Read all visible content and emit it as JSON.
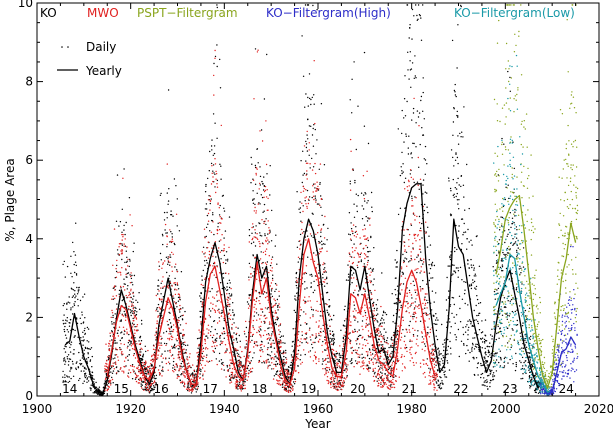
{
  "chart_data": {
    "type": "scatter",
    "xlabel": "Year",
    "ylabel": "%, Plage Area",
    "xlim": [
      1900,
      2020
    ],
    "ylim": [
      0,
      10
    ],
    "xticks": [
      "1900",
      "1920",
      "1940",
      "1960",
      "1980",
      "2000",
      "2020"
    ],
    "yticks": [
      "0",
      "2",
      "4",
      "6",
      "8",
      "10"
    ],
    "grid": false,
    "legend": {
      "placement": "top-left",
      "entries": [
        {
          "label": "Daily",
          "marker": "dot"
        },
        {
          "label": "Yearly",
          "marker": "line"
        }
      ]
    },
    "sources": [
      {
        "name": "KO",
        "color": "#000000"
      },
      {
        "name": "MWO",
        "color": "#e0201f"
      },
      {
        "name": "PSPT−Filtergram",
        "color": "#8aa51e"
      },
      {
        "name": "KO−Filtergram(High)",
        "color": "#2d2dc8"
      },
      {
        "name": "KO−Filtergram(Low)",
        "color": "#1a9aa8"
      }
    ],
    "cycle_labels": [
      {
        "label": "14",
        "x": 1907
      },
      {
        "label": "15",
        "x": 1918
      },
      {
        "label": "16",
        "x": 1926.5
      },
      {
        "label": "17",
        "x": 1937
      },
      {
        "label": "18",
        "x": 1947.5
      },
      {
        "label": "19",
        "x": 1958
      },
      {
        "label": "20",
        "x": 1968.5
      },
      {
        "label": "21",
        "x": 1979.5
      },
      {
        "label": "22",
        "x": 1990.5
      },
      {
        "label": "23",
        "x": 2001
      },
      {
        "label": "24",
        "x": 2013
      }
    ],
    "series": [
      {
        "name": "KO",
        "color": "#000000",
        "x": [
          1906,
          1907,
          1908,
          1909,
          1910,
          1911,
          1912,
          1913,
          1914,
          1915,
          1916,
          1917,
          1918,
          1919,
          1920,
          1921,
          1922,
          1923,
          1924,
          1925,
          1926,
          1927,
          1928,
          1929,
          1930,
          1931,
          1932,
          1933,
          1934,
          1935,
          1936,
          1937,
          1938,
          1939,
          1940,
          1941,
          1942,
          1943,
          1944,
          1945,
          1946,
          1947,
          1948,
          1949,
          1950,
          1951,
          1952,
          1953,
          1954,
          1955,
          1956,
          1957,
          1958,
          1959,
          1960,
          1961,
          1962,
          1963,
          1964,
          1965,
          1966,
          1967,
          1968,
          1969,
          1970,
          1971,
          1972,
          1973,
          1974,
          1975,
          1976,
          1977,
          1978,
          1979,
          1980,
          1981,
          1982,
          1983,
          1984,
          1985,
          1986,
          1987,
          1988,
          1989,
          1990,
          1991,
          1992,
          1993,
          1994,
          1995,
          1996,
          1997,
          1998,
          1999,
          2000,
          2001,
          2002,
          2003,
          2004,
          2005,
          2006,
          2007
        ],
        "y": [
          1.3,
          1.4,
          2.1,
          1.5,
          1.0,
          0.7,
          0.3,
          0.1,
          0.05,
          0.4,
          1.1,
          2.0,
          2.7,
          2.3,
          1.8,
          1.3,
          0.9,
          0.5,
          0.3,
          0.6,
          1.8,
          2.4,
          3.0,
          2.4,
          1.8,
          1.1,
          0.6,
          0.3,
          0.3,
          1.4,
          2.9,
          3.5,
          3.9,
          3.4,
          2.6,
          1.7,
          1.2,
          0.6,
          0.4,
          1.2,
          2.6,
          3.6,
          3.0,
          3.3,
          2.2,
          1.5,
          1.0,
          0.5,
          0.3,
          1.1,
          3.0,
          4.0,
          4.5,
          4.2,
          3.6,
          2.6,
          1.6,
          1.0,
          0.6,
          0.6,
          1.5,
          3.3,
          3.2,
          2.7,
          3.3,
          2.5,
          1.7,
          1.1,
          1.2,
          0.8,
          1.0,
          2.2,
          4.2,
          4.9,
          5.3,
          5.4,
          5.4,
          3.5,
          2.2,
          1.3,
          0.6,
          0.8,
          2.2,
          4.5,
          3.8,
          3.6,
          2.8,
          2.0,
          1.5,
          1.0,
          0.6,
          0.9,
          1.8,
          2.5,
          2.9,
          3.2,
          2.6,
          2.0,
          1.3,
          0.9,
          0.5,
          0.2
        ]
      },
      {
        "name": "MWO",
        "color": "#e0201f",
        "x": [
          1915,
          1916,
          1917,
          1918,
          1919,
          1920,
          1921,
          1922,
          1923,
          1924,
          1925,
          1926,
          1927,
          1928,
          1929,
          1930,
          1931,
          1932,
          1933,
          1934,
          1935,
          1936,
          1937,
          1938,
          1939,
          1940,
          1941,
          1942,
          1943,
          1944,
          1945,
          1946,
          1947,
          1948,
          1949,
          1950,
          1951,
          1952,
          1953,
          1954,
          1955,
          1956,
          1957,
          1958,
          1959,
          1960,
          1961,
          1962,
          1963,
          1964,
          1965,
          1966,
          1967,
          1968,
          1969,
          1970,
          1971,
          1972,
          1973,
          1974,
          1975,
          1976,
          1977,
          1978,
          1979,
          1980,
          1981,
          1982,
          1983,
          1984,
          1985
        ],
        "y": [
          0.5,
          1.2,
          1.9,
          2.3,
          2.2,
          1.7,
          1.2,
          0.8,
          0.5,
          0.4,
          0.7,
          1.5,
          2.0,
          2.5,
          2.2,
          1.7,
          1.0,
          0.6,
          0.3,
          0.3,
          1.1,
          2.4,
          3.1,
          3.3,
          2.7,
          2.1,
          1.4,
          0.8,
          0.5,
          0.4,
          1.1,
          2.4,
          3.4,
          2.6,
          3.0,
          2.0,
          1.4,
          0.8,
          0.4,
          0.3,
          0.7,
          2.3,
          3.6,
          4.0,
          3.4,
          3.0,
          2.1,
          1.3,
          0.7,
          0.5,
          0.5,
          1.1,
          2.6,
          2.5,
          2.1,
          2.6,
          2.0,
          1.3,
          0.9,
          0.8,
          0.6,
          0.5,
          1.2,
          2.2,
          2.9,
          3.2,
          2.9,
          2.3,
          1.6,
          0.9,
          0.5
        ]
      },
      {
        "name": "PSPT−Filtergram",
        "color": "#8aa51e",
        "x": [
          1998,
          1999,
          2000,
          2001,
          2002,
          2003,
          2004,
          2005,
          2006,
          2007,
          2008,
          2009,
          2010,
          2011,
          2012,
          2013,
          2014,
          2015
        ],
        "y": [
          3.1,
          3.7,
          4.5,
          4.8,
          5.0,
          5.1,
          4.2,
          3.1,
          2.0,
          1.2,
          0.5,
          0.2,
          0.6,
          1.8,
          3.0,
          3.5,
          4.4,
          3.9
        ]
      },
      {
        "name": "KO−Filtergram(High)",
        "color": "#2d2dc8",
        "x": [
          2008,
          2009,
          2010,
          2011,
          2012,
          2013,
          2014,
          2015
        ],
        "y": [
          0.2,
          0.05,
          0.1,
          0.6,
          1.1,
          1.2,
          1.5,
          1.3
        ]
      },
      {
        "name": "KO−Filtergram(Low)",
        "color": "#1a9aa8",
        "x": [
          1998,
          1999,
          2000,
          2001,
          2002,
          2003,
          2004,
          2005,
          2006,
          2007,
          2008,
          2009
        ],
        "y": [
          2.3,
          2.6,
          2.9,
          3.6,
          3.5,
          2.7,
          2.0,
          1.3,
          0.9,
          0.5,
          0.3,
          0.1
        ]
      }
    ]
  }
}
